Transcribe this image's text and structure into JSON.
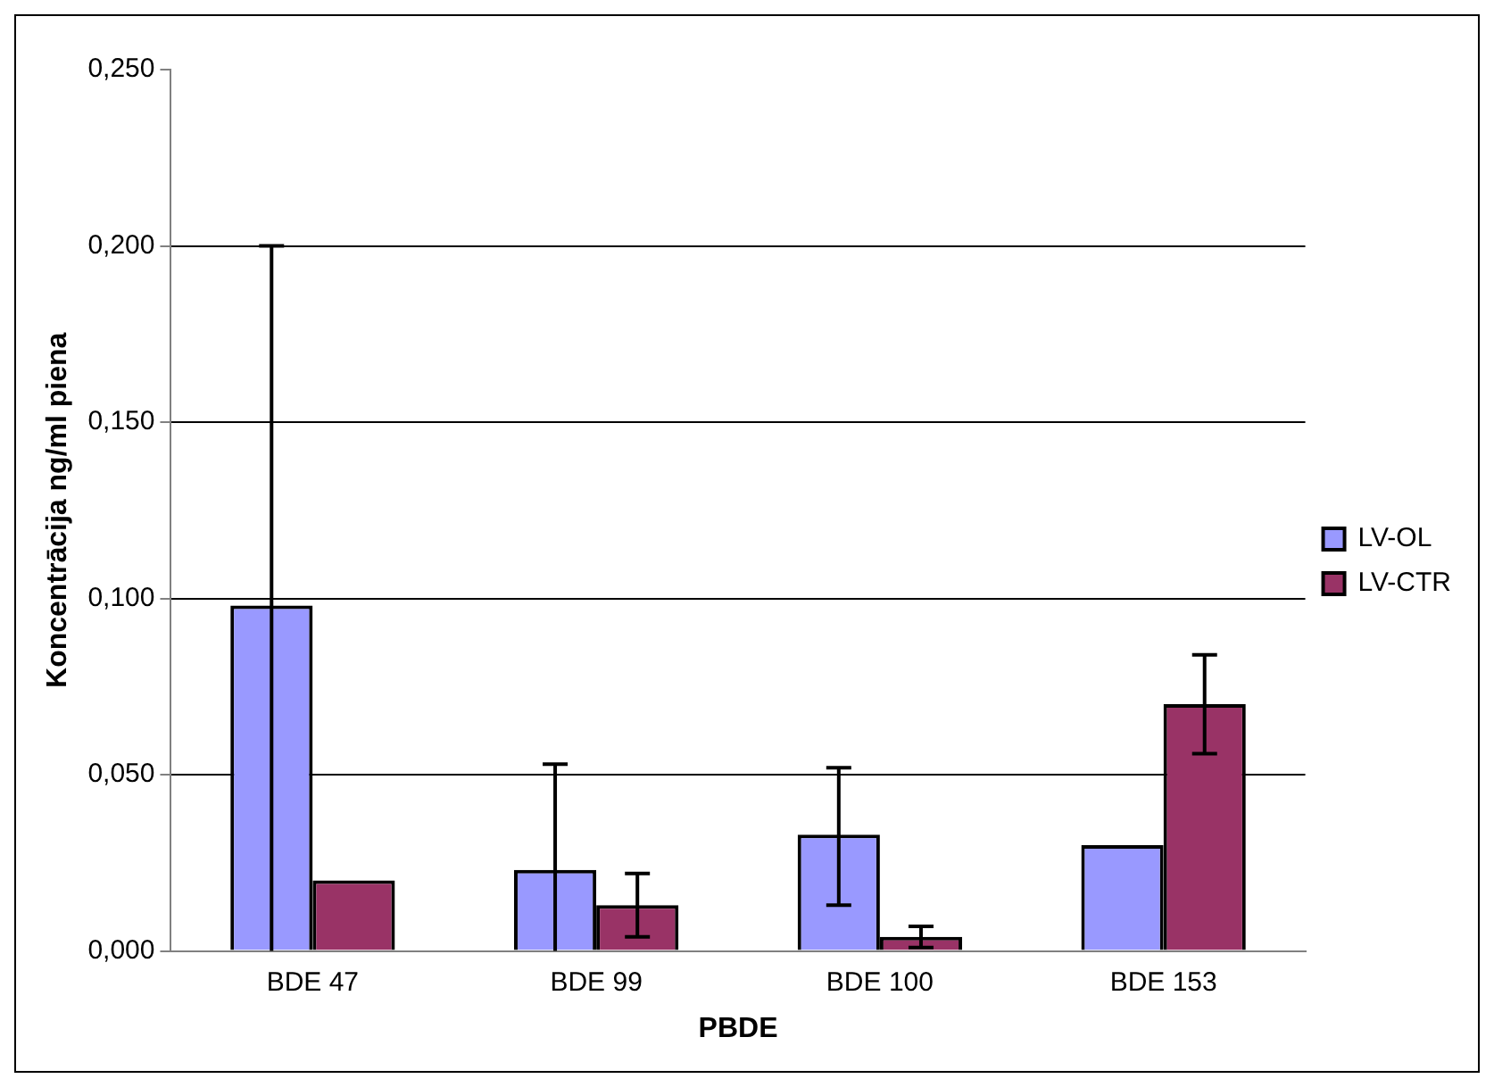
{
  "chart_data": {
    "type": "bar",
    "xlabel": "PBDE",
    "ylabel": "Koncentrācija ng/ml piena",
    "categories": [
      "BDE 47",
      "BDE 99",
      "BDE 100",
      "BDE 153"
    ],
    "series": [
      {
        "name": "LV-OL",
        "color": "#9999ff",
        "values": [
          0.098,
          0.023,
          0.033,
          0.03
        ],
        "errors": [
          [
            0,
            0.2
          ],
          [
            0,
            0.053
          ],
          [
            0.013,
            0.052
          ],
          null
        ]
      },
      {
        "name": "LV-CTR",
        "color": "#993366",
        "values": [
          0.02,
          0.013,
          0.004,
          0.07
        ],
        "errors": [
          null,
          [
            0.004,
            0.022
          ],
          [
            0.001,
            0.007
          ],
          [
            0.056,
            0.084
          ]
        ]
      }
    ],
    "ylim": [
      0,
      0.25
    ],
    "yticks": [
      {
        "value": 0,
        "label": "0,000"
      },
      {
        "value": 0.05,
        "label": "0,050"
      },
      {
        "value": 0.1,
        "label": "0,100"
      },
      {
        "value": 0.15,
        "label": "0,150"
      },
      {
        "value": 0.2,
        "label": "0,200"
      },
      {
        "value": 0.25,
        "label": "0,250"
      }
    ],
    "grid": "y",
    "legend": "right"
  }
}
